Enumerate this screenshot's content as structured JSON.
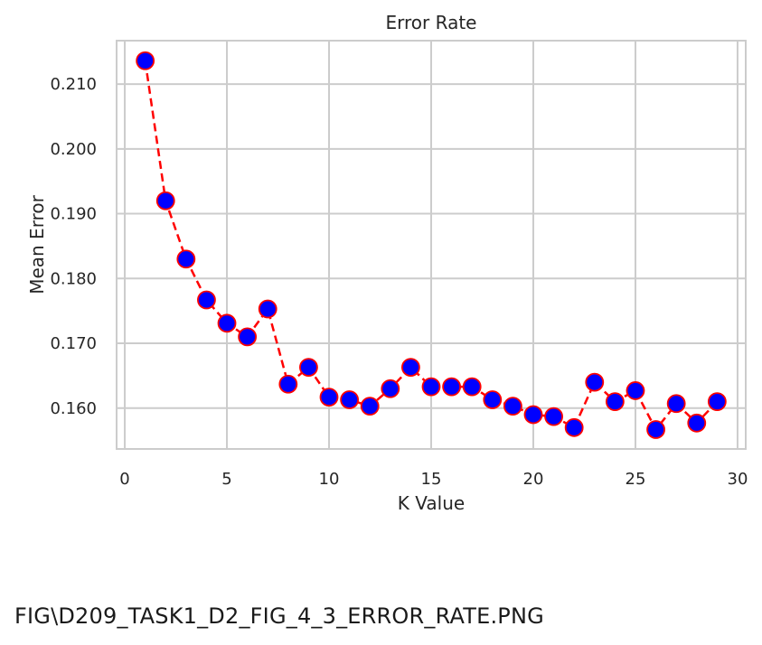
{
  "chart_data": {
    "type": "line",
    "title": "Error Rate",
    "xlabel": "K Value",
    "ylabel": "Mean Error",
    "xlim": [
      -0.4,
      30.4
    ],
    "ylim": [
      0.1537,
      0.2167
    ],
    "xticks": [
      0,
      5,
      10,
      15,
      20,
      25,
      30
    ],
    "xtick_labels": [
      "0",
      "5",
      "10",
      "15",
      "20",
      "25",
      "30"
    ],
    "yticks": [
      0.16,
      0.17,
      0.18,
      0.19,
      0.2,
      0.21
    ],
    "ytick_labels": [
      "0.160",
      "0.170",
      "0.180",
      "0.190",
      "0.200",
      "0.210"
    ],
    "grid": true,
    "line_color": "#ff0000",
    "line_style": "dashed",
    "marker_fill": "#0000ff",
    "marker_edge": "#ff0000",
    "series": [
      {
        "x": [
          1,
          2,
          3,
          4,
          5,
          6,
          7,
          8,
          9,
          10,
          11,
          12,
          13,
          14,
          15,
          16,
          17,
          18,
          19,
          20,
          21,
          22,
          23,
          24,
          25,
          26,
          27,
          28,
          29
        ],
        "values": [
          0.2136,
          0.192,
          0.183,
          0.1767,
          0.1731,
          0.171,
          0.1753,
          0.1637,
          0.1663,
          0.1617,
          0.1613,
          0.1603,
          0.163,
          0.1663,
          0.1633,
          0.1633,
          0.1633,
          0.1613,
          0.1603,
          0.159,
          0.1587,
          0.157,
          0.164,
          0.161,
          0.1627,
          0.1567,
          0.1607,
          0.1577,
          0.161
        ]
      }
    ]
  },
  "caption": "FIG\\D209_TASK1_D2_FIG_4_3_ERROR_RATE.PNG"
}
